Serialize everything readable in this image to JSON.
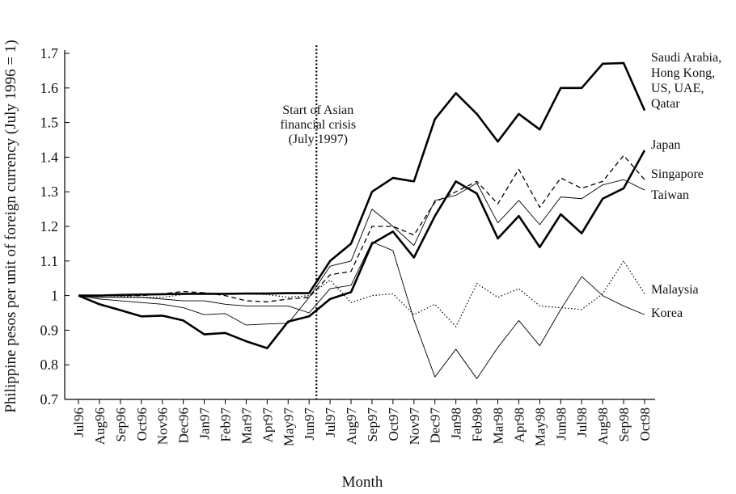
{
  "chart_data": {
    "type": "line",
    "x_label": "Month",
    "y_label": "Philippine pesos per unit of foreign currency (July 1996 = 1)",
    "annotation": {
      "lines": [
        "Start of Asian",
        "financial crisis",
        "(July 1997)"
      ],
      "at": "Jun97"
    },
    "categories": [
      "Jul96",
      "Aug96",
      "Sep96",
      "Oct96",
      "Nov96",
      "Dec96",
      "Jan97",
      "Feb97",
      "Mar97",
      "Apr97",
      "May97",
      "Jun97",
      "Jul97",
      "Aug97",
      "Sep97",
      "Oct97",
      "Nov97",
      "Dec97",
      "Jan98",
      "Feb98",
      "Mar98",
      "Apr98",
      "May98",
      "Jun98",
      "Jul98",
      "Aug98",
      "Sep98",
      "Oct98"
    ],
    "ylim": [
      0.7,
      1.7
    ],
    "yticks": [
      0.7,
      0.8,
      0.9,
      1,
      1.1,
      1.2,
      1.3,
      1.4,
      1.5,
      1.6,
      1.7
    ],
    "series": [
      {
        "name": "Saudi Arabia, Hong Kong, US, UAE, Qatar",
        "color": "#000000",
        "style": "solid",
        "width": 2.6,
        "values": [
          1.0,
          1.0,
          1.002,
          1.003,
          1.004,
          1.005,
          1.005,
          1.005,
          1.006,
          1.006,
          1.007,
          1.007,
          1.1,
          1.15,
          1.3,
          1.34,
          1.33,
          1.51,
          1.585,
          1.525,
          1.445,
          1.525,
          1.48,
          1.6,
          1.6,
          1.67,
          1.672,
          1.535
        ]
      },
      {
        "name": "Japan",
        "color": "#000000",
        "style": "solid",
        "width": 2.6,
        "values": [
          1.0,
          0.975,
          0.958,
          0.94,
          0.942,
          0.928,
          0.888,
          0.892,
          0.868,
          0.848,
          0.925,
          0.94,
          0.99,
          1.01,
          1.15,
          1.185,
          1.11,
          1.23,
          1.33,
          1.295,
          1.165,
          1.23,
          1.14,
          1.235,
          1.18,
          1.28,
          1.31,
          1.42
        ]
      },
      {
        "name": "Singapore",
        "color": "#000000",
        "style": "dashed",
        "width": 1.3,
        "values": [
          1.0,
          1.0,
          1.0,
          1.0,
          1.005,
          1.012,
          1.008,
          1.0,
          0.985,
          0.982,
          0.99,
          0.995,
          1.06,
          1.07,
          1.2,
          1.2,
          1.175,
          1.27,
          1.3,
          1.33,
          1.265,
          1.365,
          1.255,
          1.34,
          1.31,
          1.33,
          1.405,
          1.335
        ]
      },
      {
        "name": "Taiwan",
        "color": "#000000",
        "style": "solid",
        "width": 0.9,
        "values": [
          1.0,
          0.99,
          0.985,
          0.98,
          0.975,
          0.965,
          0.945,
          0.948,
          0.915,
          0.918,
          0.92,
          0.995,
          1.085,
          1.1,
          1.25,
          1.2,
          1.145,
          1.275,
          1.29,
          1.325,
          1.21,
          1.275,
          1.205,
          1.285,
          1.28,
          1.32,
          1.335,
          1.305
        ]
      },
      {
        "name": "Malaysia",
        "color": "#000000",
        "style": "dotted",
        "width": 1.2,
        "values": [
          1.0,
          1.0,
          0.998,
          0.995,
          0.995,
          1.003,
          1.008,
          1.005,
          1.005,
          1.003,
          0.995,
          1.0,
          1.045,
          0.98,
          1.0,
          1.005,
          0.945,
          0.975,
          0.91,
          1.035,
          0.995,
          1.02,
          0.97,
          0.965,
          0.96,
          1.005,
          1.1,
          1.005
        ]
      },
      {
        "name": "Korea",
        "color": "#000000",
        "style": "solid",
        "width": 0.9,
        "values": [
          1.0,
          0.995,
          0.995,
          0.995,
          0.99,
          0.985,
          0.985,
          0.975,
          0.97,
          0.97,
          0.97,
          0.95,
          1.02,
          1.03,
          1.155,
          1.13,
          0.93,
          0.765,
          0.845,
          0.76,
          0.85,
          0.928,
          0.855,
          0.96,
          1.055,
          1.0,
          0.97,
          0.945
        ]
      }
    ]
  }
}
